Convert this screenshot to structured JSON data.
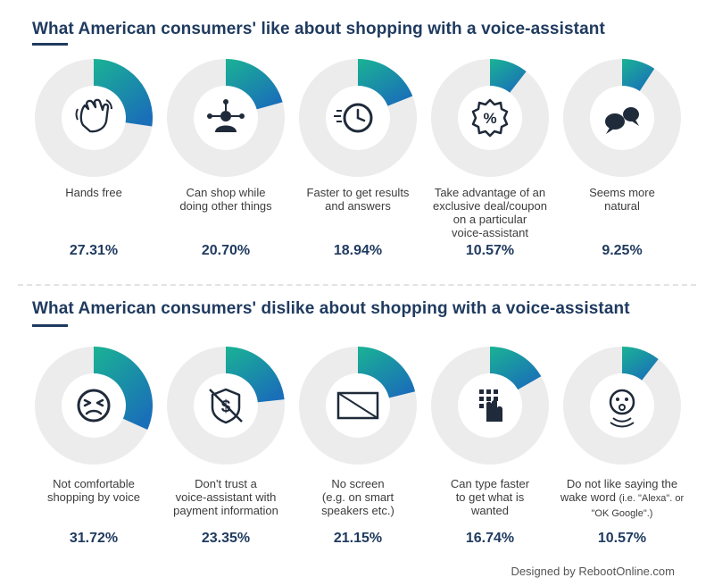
{
  "chart_data": [
    {
      "type": "pie",
      "title": "What American consumers' like about shopping with a voice-assistant",
      "categories": [
        "Hands free",
        "Can shop while doing other things",
        "Faster to get results and answers",
        "Take advantage of an exclusive deal/coupon on a particular voice-assistant",
        "Seems more natural"
      ],
      "values": [
        27.31,
        20.7,
        18.94,
        10.57,
        9.25
      ],
      "value_labels": [
        "27.31%",
        "20.70%",
        "18.94%",
        "10.57%",
        "9.25%"
      ],
      "icons": [
        "hand-icon",
        "network-person-icon",
        "clock-icon",
        "coupon-percent-icon",
        "speech-bubbles-icon"
      ]
    },
    {
      "type": "pie",
      "title": "What American consumers' dislike about shopping with a voice-assistant",
      "categories": [
        "Not comfortable shopping by voice",
        "Don't trust a voice-assistant with payment information",
        "No screen (e.g. on smart speakers etc.)",
        "Can type faster to get what is wanted",
        "Do not like saying the wake word (i.e. \"Alexa\". or \"OK Google\".)"
      ],
      "values": [
        31.72,
        23.35,
        21.15,
        16.74,
        10.57
      ],
      "value_labels": [
        "31.72%",
        "23.35%",
        "21.15%",
        "16.74%",
        "10.57%"
      ],
      "icons": [
        "uncomfortable-face-icon",
        "no-dollar-shield-icon",
        "no-screen-icon",
        "keypad-hand-icon",
        "wake-word-face-icon"
      ]
    }
  ],
  "labels": {
    "like": [
      {
        "lines": "Hands free"
      },
      {
        "lines": "Can shop while\ndoing other things"
      },
      {
        "lines": "Faster to get results\nand answers"
      },
      {
        "lines": "Take advantage of an\nexclusive deal/coupon\non a particular\nvoice-assistant"
      },
      {
        "lines": "Seems more\nnatural"
      }
    ],
    "dislike": [
      {
        "lines": "Not comfortable\nshopping by voice"
      },
      {
        "lines": "Don't trust a\nvoice-assistant with\npayment information"
      },
      {
        "lines": "No screen\n(e.g. on smart\nspeakers etc.)"
      },
      {
        "lines": "Can type faster\nto get what is\nwanted"
      },
      {
        "main": "Do not like saying the\nwake word ",
        "small": "(i.e. \"Alexa\". or\n\"OK Google\".)"
      }
    ]
  },
  "footer": "Designed by RebootOnline.com",
  "colors": {
    "accent_start": "#1ab394",
    "accent_end": "#1a6fb8",
    "track": "#ececec",
    "title": "#1f3a5f",
    "icon_fill": "#1f2a3a"
  }
}
